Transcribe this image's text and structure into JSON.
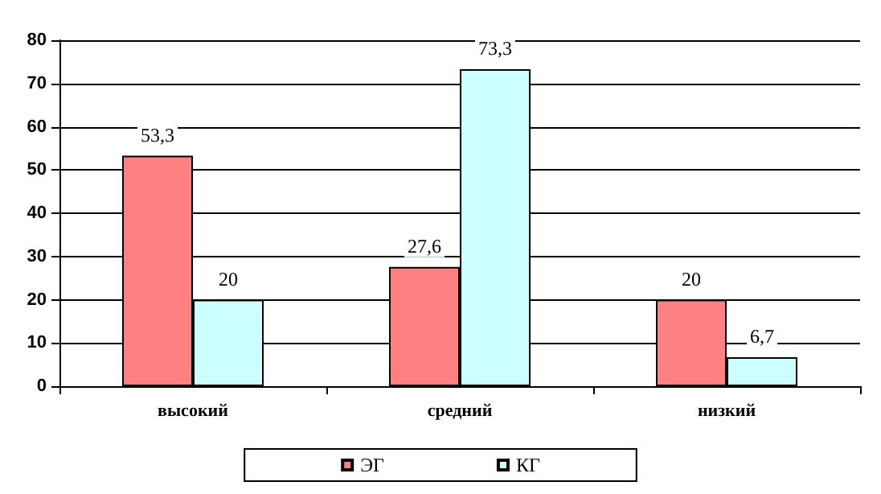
{
  "chart_data": {
    "type": "bar",
    "categories": [
      "высокий",
      "средний",
      "низкий"
    ],
    "series": [
      {
        "name": "ЭГ",
        "color": "#ff8080",
        "values": [
          53.3,
          27.6,
          20
        ],
        "value_labels": [
          "53,3",
          "27,6",
          "20"
        ]
      },
      {
        "name": "КГ",
        "color": "#ccffff",
        "values": [
          20,
          73.3,
          6.7
        ],
        "value_labels": [
          "20",
          "73,3",
          "6,7"
        ]
      }
    ],
    "ylim": [
      0,
      80
    ],
    "yticks": [
      0,
      10,
      20,
      30,
      40,
      50,
      60,
      70,
      80
    ],
    "grid": "y",
    "legend": "bottom"
  }
}
